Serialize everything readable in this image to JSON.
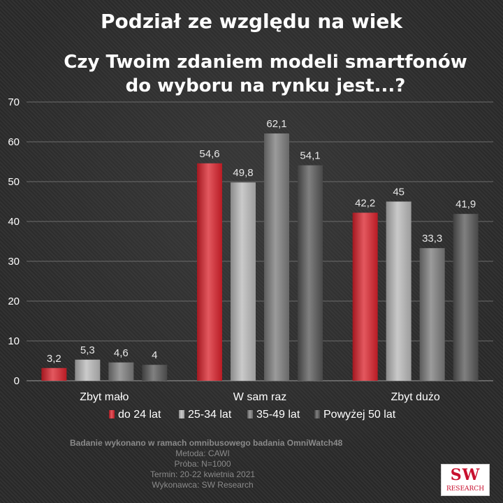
{
  "header": {
    "title": "Podział ze względu na wiek"
  },
  "chart_data": {
    "type": "bar",
    "title_lines": [
      "Czy Twoim zdaniem modeli smartfonów",
      "do wyboru na rynku jest...?"
    ],
    "categories": [
      "Zbyt mało",
      "W sam raz",
      "Zbyt dużo"
    ],
    "series": [
      {
        "name": "do 24 lat",
        "values": [
          3.2,
          54.6,
          42.2
        ],
        "color": "#d9202a"
      },
      {
        "name": "25-34 lat",
        "values": [
          5.3,
          49.8,
          45
        ],
        "color": "#b8b8b8"
      },
      {
        "name": "35-49 lat",
        "values": [
          4.6,
          62.1,
          33.3
        ],
        "color": "#7a7a7a"
      },
      {
        "name": "Powyżej 50 lat",
        "values": [
          4,
          54.1,
          41.9
        ],
        "color": "#555555"
      }
    ],
    "value_labels": [
      [
        "3,2",
        "54,6",
        "42,2"
      ],
      [
        "5,3",
        "49,8",
        "45"
      ],
      [
        "4,6",
        "62,1",
        "33,3"
      ],
      [
        "4",
        "54,1",
        "41,9"
      ]
    ],
    "ylim": [
      0,
      70
    ],
    "yticks": [
      0,
      10,
      20,
      30,
      40,
      50,
      60,
      70
    ],
    "grid": true,
    "legend": "bottom"
  },
  "footer": {
    "line1": "Badanie wykonano w ramach omnibusowego badania OmniWatch48",
    "line2": "Metoda: CAWI",
    "line3": "Próba: N=1000",
    "line4": "Termin: 20-22 kwietnia 2021",
    "line5": "Wykonawca: SW Research"
  },
  "logo": {
    "top": "SW",
    "bottom": "RESEARCH"
  }
}
